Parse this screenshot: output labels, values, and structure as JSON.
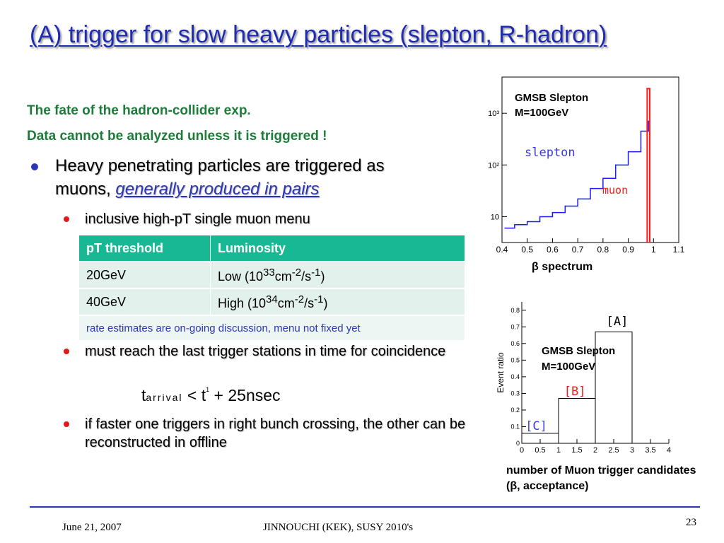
{
  "title": "(A) trigger for slow heavy particles (slepton, R-hadron)",
  "intro": {
    "line1": "The fate of the hadron-collider exp.",
    "line2": "Data cannot be analyzed unless it is triggered !"
  },
  "bullet1": {
    "text_a": "Heavy penetrating particles are triggered as",
    "text_b": "muons, ",
    "link": "generally produced in pairs"
  },
  "sub1": "inclusive high-pT single muon menu",
  "table": {
    "headers": [
      "pT threshold",
      "Luminosity"
    ],
    "rows": [
      {
        "threshold": "20GeV",
        "lum_prefix": "Low  (10",
        "lum_exp": "33",
        "lum_unit_a": "cm",
        "lum_unit_exp1": "-2",
        "lum_unit_b": "/s",
        "lum_unit_exp2": "-1",
        "lum_suffix": ")"
      },
      {
        "threshold": "40GeV",
        "lum_prefix": "High (10",
        "lum_exp": "34",
        "lum_unit_a": "cm",
        "lum_unit_exp1": "-2",
        "lum_unit_b": "/s",
        "lum_unit_exp2": "-1",
        "lum_suffix": ")"
      }
    ],
    "note": "rate estimates are on-going discussion, menu not fixed yet"
  },
  "sub2": "must reach the last trigger stations in time for coincidence",
  "formula": {
    "t": "t",
    "arrival": "arrival",
    "lt": "<",
    "t1": "t",
    "one": "1",
    "plus": "+",
    "rest": "25nsec"
  },
  "sub3": "if faster one triggers in right bunch crossing, the other can be reconstructed in offline",
  "chart_data": [
    {
      "type": "histogram",
      "title": "",
      "legend_box": [
        "GMSB Slepton",
        "M=100GeV"
      ],
      "caption": "β spectrum",
      "xlim": [
        0.4,
        1.1
      ],
      "x_ticks": [
        "0.4",
        "0.5",
        "0.6",
        "0.7",
        "0.8",
        "0.9",
        "1",
        "1.1"
      ],
      "y_scale": "log",
      "y_ticks": [
        "10",
        "10²",
        "10³"
      ],
      "series": [
        {
          "name": "slepton",
          "color": "#1a1aff",
          "x": [
            0.41,
            0.45,
            0.5,
            0.55,
            0.6,
            0.65,
            0.7,
            0.75,
            0.8,
            0.85,
            0.9,
            0.95,
            0.98
          ],
          "y": [
            6,
            7,
            8,
            10,
            12,
            16,
            22,
            35,
            55,
            100,
            180,
            450,
            700
          ]
        },
        {
          "name": "muon",
          "color": "#ff1a1a",
          "x": [
            0.98
          ],
          "y": [
            3000
          ]
        }
      ]
    },
    {
      "type": "bar",
      "legend_box": [
        "GMSB Slepton",
        "M=100GeV"
      ],
      "ylabel": "Event ratio",
      "caption": "number of Muon trigger candidates (β, acceptance)",
      "xlim": [
        0,
        4
      ],
      "x_ticks": [
        "0",
        "0.5",
        "1",
        "1.5",
        "2",
        "2.5",
        "3",
        "3.5",
        "4"
      ],
      "y_ticks": [
        "0",
        "0.1",
        "0.2",
        "0.3",
        "0.4",
        "0.5",
        "0.6",
        "0.7",
        "0.8"
      ],
      "ylim": [
        0,
        0.85
      ],
      "categories": [
        "[C]",
        "[B]",
        "[A]"
      ],
      "values": [
        0.06,
        0.27,
        0.67
      ]
    }
  ],
  "footer": {
    "date": "June 21,  2007",
    "center": "JINNOUCHI (KEK), SUSY 2010's",
    "page": "23"
  },
  "colors": {
    "title": "#1f2bb0",
    "green": "#1e7b3a",
    "table_header": "#17b893",
    "bullet": "#2a35b8",
    "sub_bullet": "#e01a1a"
  }
}
